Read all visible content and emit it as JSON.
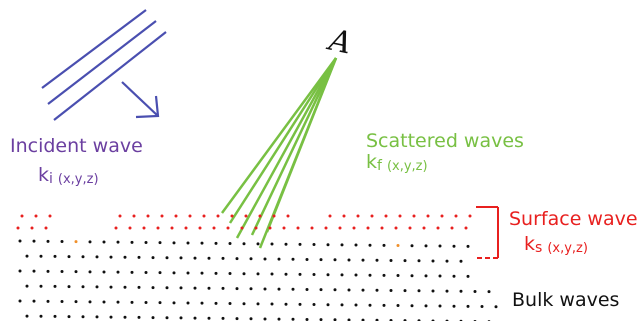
{
  "labels": {
    "incident_title": "Incident wave",
    "incident_k_main": "k",
    "incident_k_sub": "i",
    "incident_k_coords": "(x,y,z)",
    "scattered_title": "Scattered waves",
    "scattered_k_main": "k",
    "scattered_k_sub": "f",
    "scattered_k_coords": "(x,y,z)",
    "surface_title": "Surface waves",
    "surface_k_main": "k",
    "surface_k_sub": "s",
    "surface_k_coords": "(x,y,z)",
    "bulk_title": "Bulk waves",
    "detector_label": "A"
  },
  "colors": {
    "incident": "#4a4fb0",
    "incident_text": "#6b3fa0",
    "scattered": "#78c043",
    "surface": "#e8201f",
    "bulk": "#111111",
    "accent_dot": "#f0902a"
  }
}
